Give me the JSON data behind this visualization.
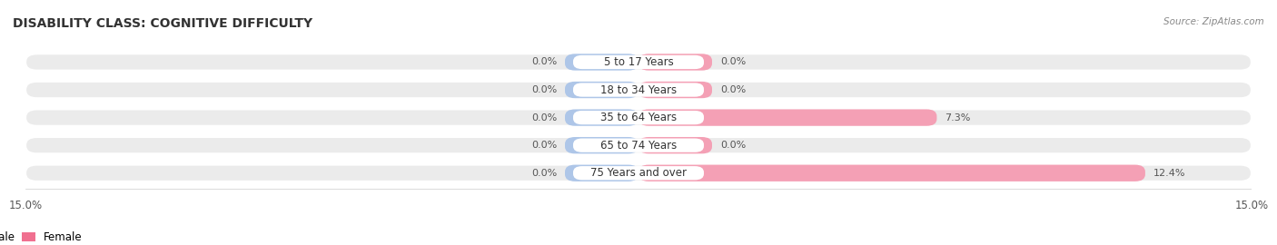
{
  "title": "DISABILITY CLASS: COGNITIVE DIFFICULTY",
  "source": "Source: ZipAtlas.com",
  "categories": [
    "5 to 17 Years",
    "18 to 34 Years",
    "35 to 64 Years",
    "65 to 74 Years",
    "75 Years and over"
  ],
  "male_values": [
    0.0,
    0.0,
    0.0,
    0.0,
    0.0
  ],
  "female_values": [
    0.0,
    0.0,
    7.3,
    0.0,
    12.4
  ],
  "xlim": 15.0,
  "male_color": "#aec6e8",
  "female_color": "#f4a0b5",
  "bar_height": 0.6,
  "row_bg_color": "#ebebeb",
  "min_bar_width": 1.8,
  "label_color": "#555555",
  "title_fontsize": 10,
  "label_fontsize": 8,
  "category_fontsize": 8.5,
  "axis_label_fontsize": 8.5,
  "legend_male_color": "#7bafd4",
  "legend_female_color": "#f07090"
}
